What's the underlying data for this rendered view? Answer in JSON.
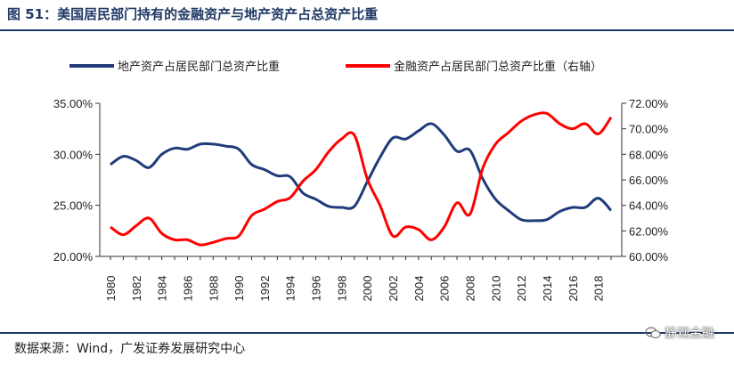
{
  "figure": {
    "title": "图 51：美国居民部门持有的金融资产与地产资产占总资产比重",
    "source": "数据来源：Wind，广发证券发展研究中心",
    "watermark": "静观金融"
  },
  "colors": {
    "series1": "#1f3b7a",
    "series2": "#ff0000",
    "rule": "#1f3864"
  },
  "chart_data": {
    "type": "line",
    "x": [
      1980,
      1981,
      1982,
      1983,
      1984,
      1985,
      1986,
      1987,
      1988,
      1989,
      1990,
      1991,
      1992,
      1993,
      1994,
      1995,
      1996,
      1997,
      1998,
      1999,
      2000,
      2001,
      2002,
      2003,
      2004,
      2005,
      2006,
      2007,
      2008,
      2009,
      2010,
      2011,
      2012,
      2013,
      2014,
      2015,
      2016,
      2017,
      2018,
      2019
    ],
    "x_tick_labels": [
      "1980",
      "1982",
      "1984",
      "1986",
      "1988",
      "1990",
      "1992",
      "1994",
      "1996",
      "1998",
      "2000",
      "2002",
      "2004",
      "2006",
      "2008",
      "2010",
      "2012",
      "2014",
      "2016",
      "2018"
    ],
    "series": [
      {
        "name": "地产资产占居民部门总资产比重",
        "axis": "left",
        "values": [
          29.0,
          29.8,
          29.4,
          28.7,
          30.0,
          30.6,
          30.5,
          31.0,
          31.0,
          30.8,
          30.5,
          29.0,
          28.5,
          27.9,
          27.8,
          26.2,
          25.6,
          24.9,
          24.8,
          24.9,
          27.3,
          29.7,
          31.6,
          31.5,
          32.3,
          33.0,
          31.9,
          30.3,
          30.4,
          27.6,
          25.6,
          24.5,
          23.6,
          23.5,
          23.6,
          24.4,
          24.8,
          24.8,
          25.7,
          24.5
        ]
      },
      {
        "name": "金融资产占居民部门总资产比重（右轴）",
        "axis": "right",
        "values": [
          62.3,
          61.7,
          62.4,
          63.0,
          61.8,
          61.3,
          61.3,
          60.9,
          61.1,
          61.4,
          61.6,
          63.2,
          63.7,
          64.3,
          64.6,
          65.9,
          66.8,
          68.2,
          69.2,
          69.5,
          66.1,
          64.0,
          61.6,
          62.3,
          62.1,
          61.3,
          62.3,
          64.2,
          63.3,
          66.9,
          68.8,
          69.7,
          70.6,
          71.1,
          71.2,
          70.4,
          70.0,
          70.4,
          69.6,
          70.9
        ]
      }
    ],
    "y_left": {
      "ylim": [
        20,
        35
      ],
      "ticks": [
        "20.00%",
        "25.00%",
        "30.00%",
        "35.00%"
      ]
    },
    "y_right": {
      "ylim": [
        60,
        72
      ],
      "ticks": [
        "60.00%",
        "62.00%",
        "64.00%",
        "66.00%",
        "68.00%",
        "70.00%",
        "72.00%"
      ]
    },
    "grid": false,
    "legend_position": "top"
  }
}
